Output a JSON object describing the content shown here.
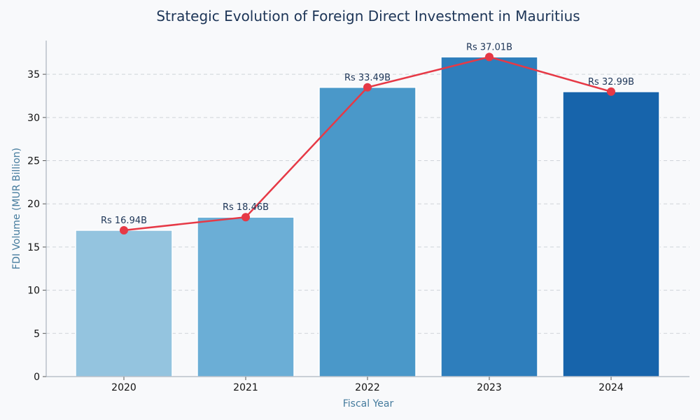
{
  "chart_data": {
    "type": "bar",
    "title": "Strategic Evolution of Foreign Direct Investment in Mauritius",
    "xlabel": "Fiscal Year",
    "ylabel": "FDI Volume (MUR Billion)",
    "categories": [
      "2020",
      "2021",
      "2022",
      "2023",
      "2024"
    ],
    "values": [
      16.94,
      18.46,
      33.49,
      37.01,
      32.99
    ],
    "data_labels": [
      "Rs 16.94B",
      "Rs 18.46B",
      "Rs 33.49B",
      "Rs 37.01B",
      "Rs 32.99B"
    ],
    "overlay_line": {
      "type": "line",
      "values": [
        16.94,
        18.46,
        33.49,
        37.01,
        32.99
      ],
      "color": "#e63946"
    },
    "ylim": [
      0,
      38.9
    ],
    "yticks": [
      0,
      5,
      10,
      15,
      20,
      25,
      30,
      35
    ],
    "grid": "horizontal dashed",
    "bar_colors": [
      "#94c4df",
      "#6baed6",
      "#4a98c9",
      "#2e7ebc",
      "#1764ab"
    ],
    "title_color": "#1d3557",
    "axis_label_color": "#457b9d"
  }
}
